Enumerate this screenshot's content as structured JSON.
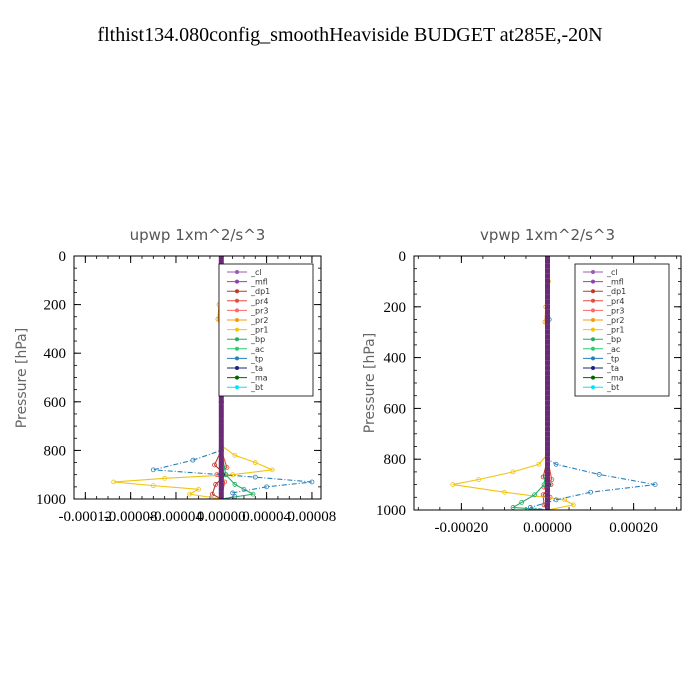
{
  "figure": {
    "title": "flthist134.080config_smoothHeaviside  BUDGET at285E,-20N"
  },
  "chart_data": [
    {
      "type": "line",
      "title": "upwp   1xm^2/s^3",
      "xlabel": "",
      "ylabel": "Pressure [hPa]",
      "xlim": [
        -0.00013,
        8.8e-05
      ],
      "ylim": [
        1000,
        0
      ],
      "xticks": [
        -0.00012,
        -8e-05,
        -4e-05,
        0.0,
        4e-05,
        8e-05
      ],
      "xtick_labels": [
        "-0.00012",
        "-0.00008",
        "-0.00004",
        "0.00000",
        "0.00004",
        "0.00008"
      ],
      "yticks": [
        0,
        200,
        400,
        600,
        800,
        1000
      ],
      "ytick_labels": [
        "0",
        "200",
        "400",
        "600",
        "800",
        "1000"
      ],
      "legend_position": "top-right",
      "series": [
        {
          "name": "_cl",
          "color": "#9b59b6",
          "y": [
            0,
            200,
            400,
            600,
            800,
            900,
            1000
          ],
          "x": [
            0,
            0,
            0,
            0,
            0,
            0,
            0
          ]
        },
        {
          "name": "_mfl",
          "color": "#8e44ad",
          "y": [
            0,
            200,
            400,
            600,
            800,
            900,
            1000
          ],
          "x": [
            0,
            0,
            0,
            0,
            0,
            0,
            0
          ]
        },
        {
          "name": "_dp1",
          "color": "#c0392b",
          "y": [
            0,
            200,
            400,
            600,
            800,
            860,
            900,
            940,
            980,
            1000
          ],
          "x": [
            0,
            0,
            0,
            0,
            0,
            -6e-06,
            4e-06,
            -5e-06,
            -8e-06,
            0
          ]
        },
        {
          "name": "_pr4",
          "color": "#e74c3c",
          "y": [
            0,
            200,
            400,
            600,
            800,
            870,
            900,
            930,
            1000
          ],
          "x": [
            0,
            0,
            0,
            0,
            0,
            5e-06,
            -4e-06,
            3e-06,
            0
          ]
        },
        {
          "name": "_pr3",
          "color": "#ff6666",
          "y": [
            0,
            200,
            400,
            600,
            800,
            900,
            1000
          ],
          "x": [
            0,
            0,
            0,
            0,
            0,
            2e-06,
            0
          ]
        },
        {
          "name": "_pr2",
          "color": "#f39c12",
          "y": [
            0,
            100,
            200,
            260,
            300,
            400,
            600,
            800,
            1000
          ],
          "x": [
            0,
            1e-06,
            -2e-06,
            -3e-06,
            0,
            0,
            0,
            0,
            0
          ]
        },
        {
          "name": "_pr1",
          "color": "#f1c40f",
          "y": [
            0,
            200,
            400,
            600,
            780,
            820,
            850,
            880,
            900,
            915,
            930,
            945,
            960,
            980,
            1000
          ],
          "x": [
            0,
            0,
            0,
            0,
            0,
            1.2e-05,
            3e-05,
            4.5e-05,
            1e-05,
            -5e-05,
            -9.5e-05,
            -6e-05,
            -2e-05,
            -2.8e-05,
            0
          ]
        },
        {
          "name": "_bp",
          "color": "#27ae60",
          "y": [
            0,
            200,
            400,
            600,
            800,
            900,
            940,
            960,
            980,
            1000
          ],
          "x": [
            0,
            0,
            0,
            0,
            0,
            4e-06,
            1.2e-05,
            2e-05,
            2.8e-05,
            0
          ]
        },
        {
          "name": "_ac",
          "color": "#2ecc71",
          "y": [
            0,
            200,
            400,
            600,
            800,
            900,
            1000
          ],
          "x": [
            0,
            0,
            0,
            0,
            0,
            2e-06,
            0
          ]
        },
        {
          "name": "_tp",
          "color": "#2980b9",
          "y": [
            0,
            200,
            250,
            300,
            400,
            600,
            800,
            840,
            880,
            910,
            930,
            950,
            975,
            990,
            1000
          ],
          "x": [
            0,
            0,
            2e-06,
            0,
            0,
            0,
            0,
            -2.5e-05,
            -6e-05,
            3e-05,
            8e-05,
            4e-05,
            1e-05,
            1.2e-05,
            0
          ]
        },
        {
          "name": "_ta",
          "color": "#1a237e",
          "y": [
            0,
            200,
            400,
            600,
            800,
            900,
            1000
          ],
          "x": [
            0,
            0,
            0,
            0,
            0,
            1e-06,
            0
          ]
        },
        {
          "name": "_ma",
          "color": "#006400",
          "y": [
            0,
            200,
            400,
            600,
            800,
            900,
            1000
          ],
          "x": [
            0,
            0,
            0,
            0,
            0,
            0,
            0
          ]
        },
        {
          "name": "_bt",
          "color": "#00e5ff",
          "y": [
            0,
            200,
            400,
            600,
            800,
            900,
            1000
          ],
          "x": [
            0,
            0,
            0,
            0,
            0,
            0,
            0
          ]
        }
      ]
    },
    {
      "type": "line",
      "title": "vpwp   1xm^2/s^3",
      "xlabel": "",
      "ylabel": "Pressure [hPa]",
      "xlim": [
        -0.00031,
        0.00031
      ],
      "ylim": [
        1000,
        0
      ],
      "xticks": [
        -0.0002,
        0.0,
        0.0002
      ],
      "xtick_labels": [
        "-0.00020",
        "0.00000",
        "0.00020"
      ],
      "yticks": [
        0,
        200,
        400,
        600,
        800,
        1000
      ],
      "ytick_labels": [
        "0",
        "200",
        "400",
        "600",
        "800",
        "1000"
      ],
      "legend_position": "top-right",
      "series": [
        {
          "name": "_cl",
          "color": "#9b59b6",
          "y": [
            0,
            200,
            400,
            600,
            800,
            900,
            1000
          ],
          "x": [
            0,
            0,
            0,
            0,
            0,
            0,
            0
          ]
        },
        {
          "name": "_mfl",
          "color": "#8e44ad",
          "y": [
            0,
            200,
            400,
            600,
            800,
            900,
            1000
          ],
          "x": [
            0,
            0,
            0,
            0,
            0,
            0,
            0
          ]
        },
        {
          "name": "_dp1",
          "color": "#c0392b",
          "y": [
            0,
            200,
            400,
            600,
            800,
            870,
            900,
            940,
            980,
            1000
          ],
          "x": [
            0,
            0,
            0,
            0,
            0,
            -1e-05,
            8e-06,
            -1e-05,
            -8e-06,
            0
          ]
        },
        {
          "name": "_pr4",
          "color": "#e74c3c",
          "y": [
            0,
            200,
            400,
            600,
            800,
            880,
            910,
            950,
            1000
          ],
          "x": [
            0,
            0,
            0,
            0,
            0,
            1e-05,
            -8e-06,
            6e-06,
            0
          ]
        },
        {
          "name": "_pr3",
          "color": "#ff6666",
          "y": [
            0,
            200,
            400,
            600,
            800,
            900,
            1000
          ],
          "x": [
            0,
            0,
            0,
            0,
            0,
            4e-06,
            0
          ]
        },
        {
          "name": "_pr2",
          "color": "#f39c12",
          "y": [
            0,
            100,
            200,
            260,
            300,
            400,
            600,
            800,
            1000
          ],
          "x": [
            0,
            2e-06,
            -4e-06,
            -6e-06,
            0,
            0,
            0,
            0,
            0
          ]
        },
        {
          "name": "_pr1",
          "color": "#f1c40f",
          "y": [
            0,
            200,
            400,
            600,
            780,
            820,
            850,
            880,
            900,
            930,
            960,
            980,
            1000
          ],
          "x": [
            0,
            0,
            0,
            0,
            0,
            -2e-05,
            -8e-05,
            -0.00016,
            -0.00022,
            -0.0001,
            4e-05,
            6e-05,
            0
          ]
        },
        {
          "name": "_bp",
          "color": "#27ae60",
          "y": [
            0,
            200,
            400,
            600,
            800,
            900,
            940,
            970,
            990,
            1000
          ],
          "x": [
            0,
            0,
            0,
            0,
            0,
            -8e-06,
            -3e-05,
            -6e-05,
            -8e-05,
            0
          ]
        },
        {
          "name": "_ac",
          "color": "#2ecc71",
          "y": [
            0,
            200,
            400,
            600,
            800,
            900,
            1000
          ],
          "x": [
            0,
            0,
            0,
            0,
            0,
            4e-06,
            0
          ]
        },
        {
          "name": "_tp",
          "color": "#2980b9",
          "y": [
            0,
            200,
            250,
            300,
            400,
            600,
            800,
            820,
            860,
            900,
            930,
            960,
            990,
            1000
          ],
          "x": [
            0,
            0,
            4e-06,
            0,
            0,
            0,
            0,
            2e-05,
            0.00012,
            0.00025,
            0.0001,
            2e-05,
            -4e-05,
            0
          ]
        },
        {
          "name": "_ta",
          "color": "#1a237e",
          "y": [
            0,
            200,
            400,
            600,
            800,
            900,
            1000
          ],
          "x": [
            0,
            0,
            0,
            0,
            0,
            2e-06,
            0
          ]
        },
        {
          "name": "_ma",
          "color": "#006400",
          "y": [
            0,
            200,
            400,
            600,
            800,
            900,
            1000
          ],
          "x": [
            0,
            0,
            0,
            0,
            0,
            0,
            0
          ]
        },
        {
          "name": "_bt",
          "color": "#00e5ff",
          "y": [
            0,
            200,
            400,
            600,
            800,
            900,
            1000
          ],
          "x": [
            0,
            0,
            0,
            0,
            0,
            0,
            0
          ]
        }
      ]
    }
  ]
}
